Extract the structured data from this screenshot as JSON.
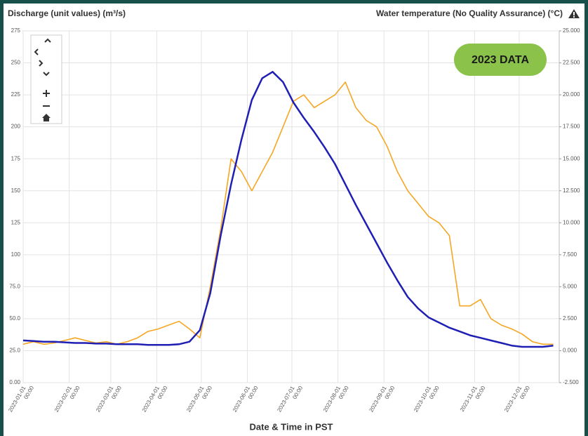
{
  "chart_data": {
    "type": "line",
    "title": "2023 DATA",
    "y_label": "Discharge (unit values) (m³/s)",
    "y2_label": "Water temperature (No Quality Assurance) (°C)",
    "x_label": "Date & Time in PST",
    "x": [
      "2023-01-01",
      "2023-01-08",
      "2023-01-15",
      "2023-01-22",
      "2023-01-29",
      "2023-02-05",
      "2023-02-12",
      "2023-02-19",
      "2023-02-26",
      "2023-03-05",
      "2023-03-12",
      "2023-03-19",
      "2023-03-26",
      "2023-04-02",
      "2023-04-09",
      "2023-04-16",
      "2023-04-23",
      "2023-04-30",
      "2023-05-07",
      "2023-05-14",
      "2023-05-21",
      "2023-05-28",
      "2023-06-04",
      "2023-06-11",
      "2023-06-18",
      "2023-06-25",
      "2023-07-02",
      "2023-07-09",
      "2023-07-16",
      "2023-07-23",
      "2023-07-30",
      "2023-08-06",
      "2023-08-13",
      "2023-08-20",
      "2023-08-27",
      "2023-09-03",
      "2023-09-10",
      "2023-09-17",
      "2023-09-24",
      "2023-10-01",
      "2023-10-08",
      "2023-10-15",
      "2023-10-22",
      "2023-10-29",
      "2023-11-05",
      "2023-11-12",
      "2023-11-19",
      "2023-11-26",
      "2023-12-03",
      "2023-12-10",
      "2023-12-17",
      "2023-12-24"
    ],
    "series": [
      {
        "name": "Discharge",
        "color": "#f5a623",
        "axis": "y",
        "values": [
          30,
          32,
          30,
          31,
          33,
          35,
          33,
          31,
          32,
          30,
          32,
          35,
          40,
          42,
          45,
          48,
          42,
          35,
          75,
          120,
          175,
          165,
          150,
          165,
          180,
          200,
          220,
          225,
          215,
          220,
          225,
          235,
          215,
          205,
          200,
          185,
          165,
          150,
          140,
          130,
          125,
          115,
          60,
          60,
          65,
          50,
          45,
          42,
          38,
          32,
          30,
          30
        ]
      },
      {
        "name": "Water temperature",
        "color": "#1f1fb4",
        "axis": "y2",
        "values": [
          0.8,
          0.75,
          0.7,
          0.7,
          0.65,
          0.6,
          0.6,
          0.55,
          0.55,
          0.5,
          0.5,
          0.5,
          0.45,
          0.45,
          0.45,
          0.5,
          0.7,
          1.6,
          4.5,
          9.0,
          13.0,
          16.5,
          19.6,
          21.3,
          21.8,
          21.0,
          19.4,
          18.2,
          17.1,
          15.9,
          14.6,
          13.0,
          11.4,
          9.9,
          8.4,
          6.9,
          5.5,
          4.2,
          3.3,
          2.6,
          2.2,
          1.8,
          1.5,
          1.2,
          1.0,
          0.8,
          0.6,
          0.4,
          0.3,
          0.3,
          0.3,
          0.4
        ]
      }
    ],
    "xlim": [
      "2023-01-01",
      "2023-12-28"
    ],
    "xticks": [
      {
        "value": "2023-01-01",
        "label": "2023-01-01 00:00"
      },
      {
        "value": "2023-02-01",
        "label": "2023-02-01 00:00"
      },
      {
        "value": "2023-03-01",
        "label": "2023-03-01 00:00"
      },
      {
        "value": "2023-04-01",
        "label": "2023-04-01 00:00"
      },
      {
        "value": "2023-05-01",
        "label": "2023-05-01 00:00"
      },
      {
        "value": "2023-06-01",
        "label": "2023-06-01 00:00"
      },
      {
        "value": "2023-07-01",
        "label": "2023-07-01 00:00"
      },
      {
        "value": "2023-08-01",
        "label": "2023-08-01 00:00"
      },
      {
        "value": "2023-09-01",
        "label": "2023-09-01 00:00"
      },
      {
        "value": "2023-10-01",
        "label": "2023-10-01 00:00"
      },
      {
        "value": "2023-11-01",
        "label": "2023-11-01 00:00"
      },
      {
        "value": "2023-12-01",
        "label": "2023-12-01 00:00"
      }
    ],
    "ylim": [
      0,
      275
    ],
    "yticks": [
      {
        "value": 0,
        "label": "0.00"
      },
      {
        "value": 25,
        "label": "25.0"
      },
      {
        "value": 50,
        "label": "50.0"
      },
      {
        "value": 75,
        "label": "75.0"
      },
      100,
      125,
      150,
      175,
      200,
      225,
      250,
      275
    ],
    "y2lim": [
      -2.5,
      25
    ],
    "y2ticks": [
      {
        "value": -2.5,
        "label": "-2.500"
      },
      {
        "value": 0,
        "label": "0.000"
      },
      {
        "value": 2.5,
        "label": "2.500"
      },
      {
        "value": 5,
        "label": "5.000"
      },
      {
        "value": 7.5,
        "label": "7.500"
      },
      {
        "value": 10,
        "label": "10.000"
      },
      {
        "value": 12.5,
        "label": "12.500"
      },
      {
        "value": 15,
        "label": "15.000"
      },
      {
        "value": 17.5,
        "label": "17.500"
      },
      {
        "value": 20,
        "label": "20.000"
      },
      {
        "value": 22.5,
        "label": "22.500"
      },
      {
        "value": 25,
        "label": "25.000"
      }
    ],
    "grid": true
  }
}
